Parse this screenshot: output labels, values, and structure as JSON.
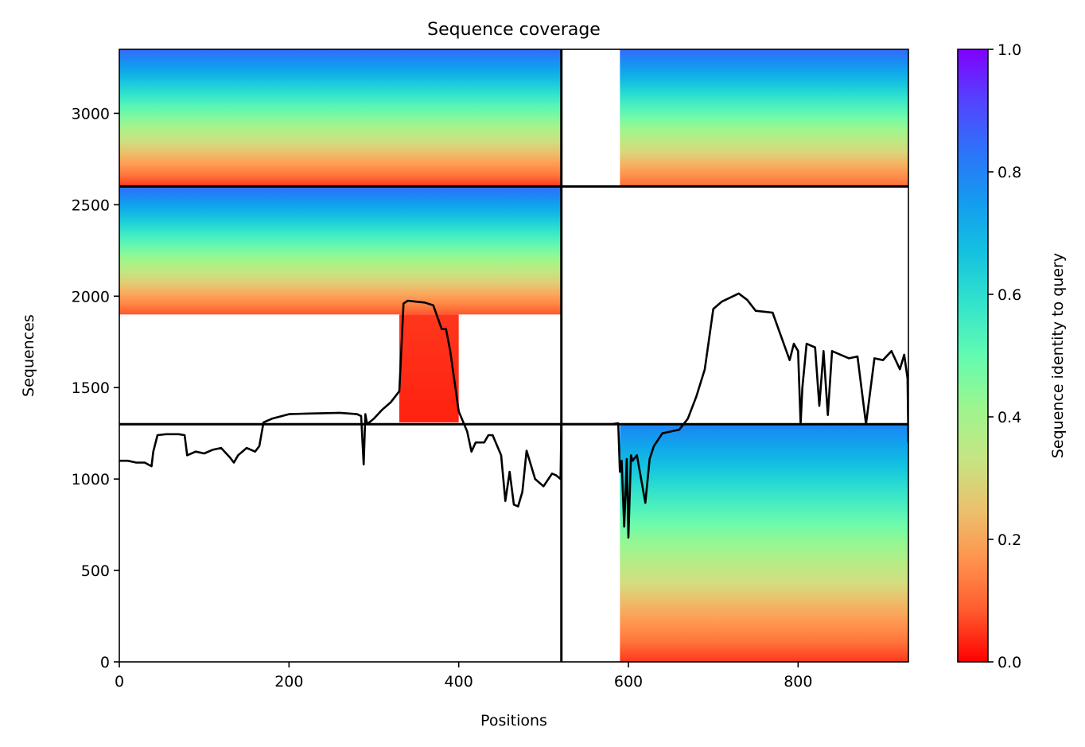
{
  "chart_data": {
    "type": "heatmap",
    "title": "Sequence coverage",
    "xlabel": "Positions",
    "ylabel": "Sequences",
    "xlim": [
      0,
      930
    ],
    "ylim": [
      0,
      3350
    ],
    "xticks": [
      0,
      200,
      400,
      600,
      800
    ],
    "yticks": [
      0,
      500,
      1000,
      1500,
      2000,
      2500,
      3000
    ],
    "colorbar": {
      "label": "Sequence identity to query",
      "range": [
        0,
        1
      ],
      "ticks": [
        0.0,
        0.2,
        0.4,
        0.6,
        0.8,
        1.0
      ],
      "tick_labels": [
        "0.0",
        "0.2",
        "0.4",
        "0.6",
        "0.8",
        "1.0"
      ],
      "colormap": "rainbow_r",
      "colormap_stops": [
        "#ff0000",
        "#ff6d37",
        "#ffa65a",
        "#d4dd80",
        "#a6f588",
        "#62fbb1",
        "#2bdfd0",
        "#0ab4e7",
        "#1d84f6",
        "#4b50fe",
        "#8000ff"
      ]
    },
    "block_boundaries": {
      "x": [
        521
      ],
      "y": [
        1300,
        2600
      ]
    },
    "blocks": [
      {
        "name": "block-1-1",
        "x": [
          0,
          521
        ],
        "y": [
          2600,
          3350
        ],
        "identity_bottom": 0.05,
        "identity_top": 0.85
      },
      {
        "name": "block-1-2",
        "x": [
          590,
          930
        ],
        "y": [
          2600,
          3350
        ],
        "identity_bottom": 0.1,
        "identity_top": 0.85
      },
      {
        "name": "block-2-1",
        "x": [
          0,
          521
        ],
        "y": [
          1900,
          2600
        ],
        "identity_bottom": 0.08,
        "identity_top": 0.85
      },
      {
        "name": "block-2-1-tail",
        "x": [
          330,
          400
        ],
        "y": [
          1310,
          1900
        ],
        "identity_bottom": 0.03,
        "identity_top": 0.05
      },
      {
        "name": "block-3-2",
        "x": [
          590,
          930
        ],
        "y": [
          0,
          1300
        ],
        "identity_bottom": 0.05,
        "identity_top": 0.8
      }
    ],
    "coverage_line": {
      "x": [
        0,
        10,
        20,
        30,
        38,
        40,
        45,
        55,
        70,
        77,
        80,
        90,
        100,
        110,
        120,
        130,
        135,
        140,
        150,
        160,
        165,
        170,
        180,
        200,
        220,
        240,
        260,
        280,
        285,
        288,
        290,
        292,
        300,
        310,
        320,
        330,
        335,
        340,
        350,
        360,
        370,
        380,
        385,
        390,
        400,
        410,
        415,
        420,
        430,
        435,
        440,
        450,
        455,
        460,
        465,
        470,
        475,
        480,
        490,
        500,
        510,
        515,
        520,
        521,
        540,
        560,
        580,
        588,
        590,
        592,
        595,
        598,
        600,
        603,
        605,
        610,
        620,
        625,
        630,
        640,
        650,
        660,
        670,
        680,
        690,
        700,
        710,
        730,
        740,
        750,
        770,
        780,
        790,
        795,
        800,
        803,
        805,
        810,
        820,
        825,
        830,
        835,
        840,
        850,
        860,
        870,
        880,
        890,
        900,
        910,
        920,
        925,
        929,
        930
      ],
      "y": [
        1100,
        1100,
        1090,
        1090,
        1070,
        1150,
        1240,
        1245,
        1245,
        1240,
        1130,
        1150,
        1140,
        1160,
        1170,
        1120,
        1090,
        1130,
        1170,
        1150,
        1180,
        1310,
        1330,
        1355,
        1358,
        1360,
        1362,
        1355,
        1345,
        1080,
        1355,
        1300,
        1330,
        1380,
        1420,
        1480,
        1960,
        1975,
        1970,
        1965,
        1950,
        1820,
        1820,
        1700,
        1370,
        1260,
        1150,
        1200,
        1200,
        1240,
        1240,
        1130,
        880,
        1040,
        860,
        850,
        930,
        1155,
        1000,
        960,
        1030,
        1020,
        1000,
        1300,
        1300,
        1300,
        1300,
        1305,
        1040,
        1100,
        740,
        1110,
        680,
        1130,
        1100,
        1130,
        870,
        1110,
        1180,
        1250,
        1260,
        1270,
        1330,
        1450,
        1600,
        1930,
        1970,
        2015,
        1980,
        1920,
        1910,
        1780,
        1650,
        1740,
        1700,
        1300,
        1500,
        1740,
        1720,
        1400,
        1700,
        1350,
        1700,
        1680,
        1660,
        1670,
        1300,
        1660,
        1650,
        1700,
        1600,
        1680,
        1550,
        1200
      ]
    }
  }
}
